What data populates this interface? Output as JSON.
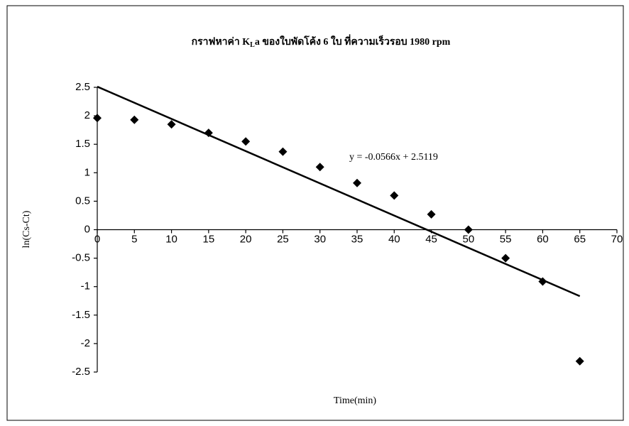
{
  "chart_data": {
    "type": "scatter",
    "title": [
      "กราฟหาค่า K",
      "L",
      "a ของใบพัดโค้ง 6 ใบ ที่ความเร็วรอบ 1980 rpm"
    ],
    "x_label": "Time(min)",
    "y_label": "ln(Cs-Ct)",
    "x": [
      0,
      5,
      10,
      15,
      20,
      25,
      30,
      35,
      40,
      45,
      50,
      55,
      60,
      65
    ],
    "values": [
      1.96,
      1.93,
      1.85,
      1.7,
      1.55,
      1.37,
      1.1,
      0.82,
      0.6,
      0.27,
      0,
      -0.5,
      -0.91,
      -2.31
    ],
    "color": "#000000",
    "trendline": {
      "slope": -0.0566,
      "intercept": 2.5119,
      "label": "y = -0.0566x + 2.5119"
    },
    "xlim": [
      0,
      70
    ],
    "xticks": [
      0,
      5,
      10,
      15,
      20,
      25,
      30,
      35,
      40,
      45,
      50,
      55,
      60,
      65,
      70
    ],
    "ylim": [
      -2.5,
      2.5
    ],
    "yticks": [
      -2.5,
      -2,
      -1.5,
      -1,
      -0.5,
      0,
      0.5,
      1,
      1.5,
      2,
      2.5
    ]
  }
}
